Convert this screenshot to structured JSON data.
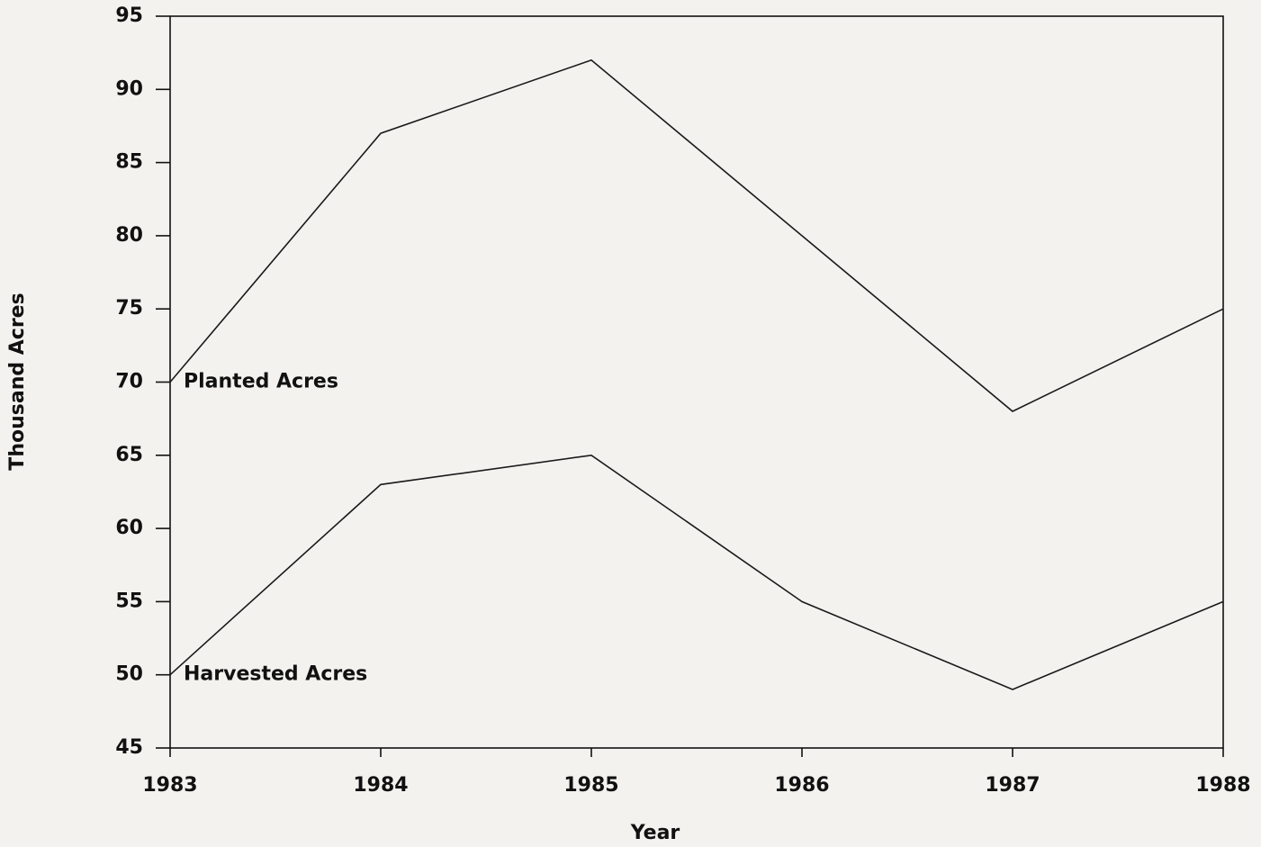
{
  "chart_data": {
    "type": "line",
    "x_label": "Year",
    "y_label": "Thousand Acres",
    "x": [
      1983,
      1984,
      1985,
      1986,
      1987,
      1988
    ],
    "series": [
      {
        "name": "Planted Acres",
        "color": "#1a1a1a",
        "values": [
          70,
          87,
          92,
          80,
          68,
          75
        ]
      },
      {
        "name": "Harvested Acres",
        "color": "#1a1a1a",
        "values": [
          50,
          63,
          65,
          55,
          49,
          55
        ]
      }
    ],
    "xlim": [
      1983,
      1988
    ],
    "xticks": [
      1983,
      1984,
      1985,
      1986,
      1987,
      1988
    ],
    "ylim": [
      45,
      95
    ],
    "yticks": [
      45,
      50,
      55,
      60,
      65,
      70,
      75,
      80,
      85,
      90,
      95
    ],
    "grid": false
  }
}
